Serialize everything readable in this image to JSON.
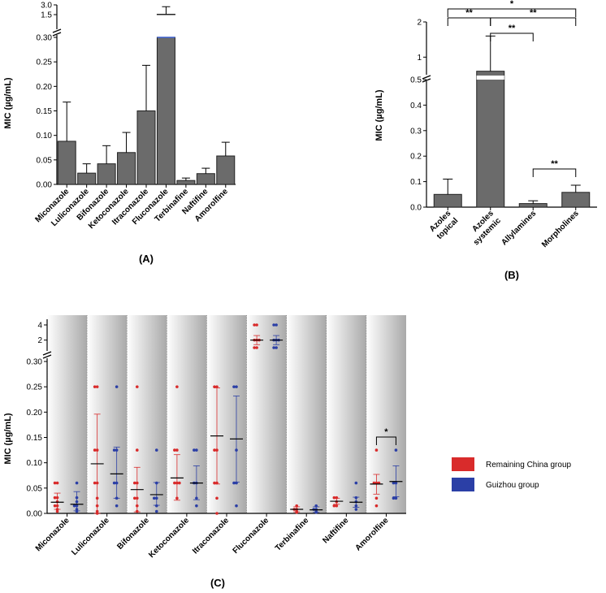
{
  "chart_data": [
    {
      "type": "bar",
      "panel_label": "(A)",
      "ylabel": "MIC (µg/mL)",
      "categories": [
        "Miconazole",
        "Luliconazole",
        "Bifonazole",
        "Ketoconazole",
        "Itraconazole",
        "Fluconazole",
        "Terbinafine",
        "Naftifine",
        "Amorolfine"
      ],
      "values": [
        0.088,
        0.023,
        0.042,
        0.065,
        0.15,
        1.56,
        0.008,
        0.022,
        0.058
      ],
      "errors_upper": [
        0.168,
        0.042,
        0.079,
        0.106,
        0.243,
        2.72,
        0.013,
        0.033,
        0.086
      ],
      "y_segments": [
        {
          "range": [
            0,
            0.3
          ],
          "ticks": [
            "0.00",
            "0.05",
            "0.10",
            "0.15",
            "0.20",
            "0.25",
            "0.30"
          ]
        },
        {
          "range": [
            1.5,
            3.0
          ],
          "ticks": [
            "1.5",
            "3.0"
          ]
        }
      ],
      "colors": {
        "bar": "#6b6b6b",
        "edge": "#222222"
      }
    },
    {
      "type": "bar",
      "panel_label": "(B)",
      "ylabel": "MIC (µg/mL)",
      "categories": [
        "Azoles topical",
        "Azoles systemic",
        "Allylamines",
        "Morpholines"
      ],
      "values": [
        0.05,
        0.6,
        0.014,
        0.058
      ],
      "errors_upper": [
        0.11,
        1.6,
        0.025,
        0.086
      ],
      "y_segments": [
        {
          "range": [
            0,
            0.5
          ],
          "ticks": [
            "0.0",
            "0.1",
            "0.2",
            "0.3",
            "0.4",
            "0.5"
          ]
        },
        {
          "range": [
            0.5,
            2
          ],
          "ticks": [
            "1",
            "2"
          ]
        }
      ],
      "significance": [
        {
          "from": "Azoles topical",
          "to": "Azoles systemic",
          "label": "**"
        },
        {
          "from": "Azoles topical",
          "to": "Morpholines",
          "label": "*"
        },
        {
          "from": "Azoles systemic",
          "to": "Morpholines",
          "label": "**"
        },
        {
          "from": "Azoles systemic",
          "to": "Allylamines",
          "label": "**"
        },
        {
          "from": "Allylamines",
          "to": "Morpholines",
          "label": "**"
        }
      ],
      "colors": {
        "bar": "#6b6b6b",
        "edge": "#222222"
      }
    },
    {
      "type": "scatter",
      "panel_label": "(C)",
      "ylabel": "MIC (µg/mL)",
      "categories": [
        "Miconazole",
        "Luliconazole",
        "Bifonazole",
        "Ketoconazole",
        "Itraconazole",
        "Fluconazole",
        "Terbinafine",
        "Naftifine",
        "Amorolfine"
      ],
      "y_segments": [
        {
          "range": [
            0,
            0.3
          ],
          "ticks": [
            "0.00",
            "0.05",
            "0.10",
            "0.15",
            "0.20",
            "0.25",
            "0.30"
          ]
        },
        {
          "range": [
            1,
            4
          ],
          "ticks": [
            "2",
            "4"
          ]
        }
      ],
      "legend": [
        "Remaining China group",
        "Guizhou group"
      ],
      "series": [
        {
          "name": "Remaining China group",
          "color": "#d92b2b",
          "mean": [
            0.022,
            0.098,
            0.047,
            0.07,
            0.153,
            2.0,
            0.008,
            0.024,
            0.058
          ],
          "sd_low": [
            0.008,
            0.0,
            0.003,
            0.026,
            0.058,
            1.4,
            0.003,
            0.018,
            0.038
          ],
          "sd_high": [
            0.04,
            0.196,
            0.091,
            0.116,
            0.248,
            2.6,
            0.013,
            0.03,
            0.077
          ],
          "values": [
            [
              0.004,
              0.008,
              0.015,
              0.015,
              0.023,
              0.031,
              0.031,
              0.06,
              0.06
            ],
            [
              0.004,
              0.015,
              0.03,
              0.06,
              0.06,
              0.125,
              0.125,
              0.25,
              0.25,
              0.33
            ],
            [
              0.004,
              0.015,
              0.03,
              0.03,
              0.06,
              0.06,
              0.125,
              0.25
            ],
            [
              0.03,
              0.06,
              0.06,
              0.06,
              0.125,
              0.125,
              0.25
            ],
            [
              0.03,
              0.06,
              0.06,
              0.125,
              0.125,
              0.25,
              0.25,
              0.33
            ],
            [
              1,
              1,
              2,
              2,
              2,
              4,
              4
            ],
            [
              0.002,
              0.004,
              0.008,
              0.008,
              0.015
            ],
            [
              0.015,
              0.015,
              0.023,
              0.031,
              0.031
            ],
            [
              0.015,
              0.03,
              0.06,
              0.06,
              0.06,
              0.125
            ]
          ]
        },
        {
          "name": "Guizhou group",
          "color": "#2b3fa6",
          "mean": [
            0.018,
            0.078,
            0.037,
            0.06,
            0.147,
            2.0,
            0.007,
            0.022,
            0.063
          ],
          "sd_low": [
            0.005,
            0.03,
            0.016,
            0.027,
            0.062,
            1.4,
            0.002,
            0.012,
            0.033
          ],
          "sd_high": [
            0.043,
            0.131,
            0.061,
            0.094,
            0.232,
            2.6,
            0.013,
            0.032,
            0.094
          ],
          "values": [
            [
              0.004,
              0.008,
              0.015,
              0.015,
              0.023,
              0.031,
              0.06
            ],
            [
              0.015,
              0.03,
              0.06,
              0.06,
              0.125,
              0.125,
              0.25
            ],
            [
              0.004,
              0.015,
              0.03,
              0.03,
              0.06,
              0.125
            ],
            [
              0.015,
              0.03,
              0.06,
              0.06,
              0.125,
              0.125
            ],
            [
              0.015,
              0.06,
              0.06,
              0.125,
              0.25,
              0.25
            ],
            [
              1,
              1,
              2,
              2,
              2,
              4,
              4
            ],
            [
              0.002,
              0.004,
              0.008,
              0.008,
              0.015
            ],
            [
              0.008,
              0.015,
              0.023,
              0.031,
              0.06
            ],
            [
              0.03,
              0.03,
              0.06,
              0.06,
              0.125
            ]
          ]
        }
      ],
      "significance": [
        {
          "category": "Amorolfine",
          "label": "*"
        }
      ]
    }
  ]
}
